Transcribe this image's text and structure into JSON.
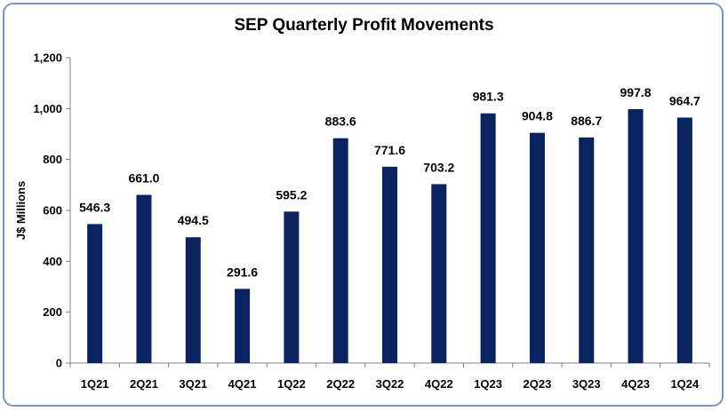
{
  "chart_data": {
    "type": "bar",
    "title": "SEP Quarterly Profit Movements",
    "xlabel": "",
    "ylabel": "J$ Millions",
    "ylim": [
      0,
      1200
    ],
    "yticks": [
      "0",
      "200",
      "400",
      "600",
      "800",
      "1,000",
      "1,200"
    ],
    "categories": [
      "1Q21",
      "2Q21",
      "3Q21",
      "4Q21",
      "1Q22",
      "2Q22",
      "3Q22",
      "4Q22",
      "1Q23",
      "2Q23",
      "3Q23",
      "4Q23",
      "1Q24"
    ],
    "values": [
      546.3,
      661.0,
      494.5,
      291.6,
      595.2,
      883.6,
      771.6,
      703.2,
      981.3,
      904.8,
      886.7,
      997.8,
      964.7
    ],
    "labels": [
      "546.3",
      "661.0",
      "494.5",
      "291.6",
      "595.2",
      "883.6",
      "771.6",
      "703.2",
      "981.3",
      "904.8",
      "886.7",
      "997.8",
      "964.7"
    ],
    "bar_color": "#0b2261",
    "grid": false
  }
}
